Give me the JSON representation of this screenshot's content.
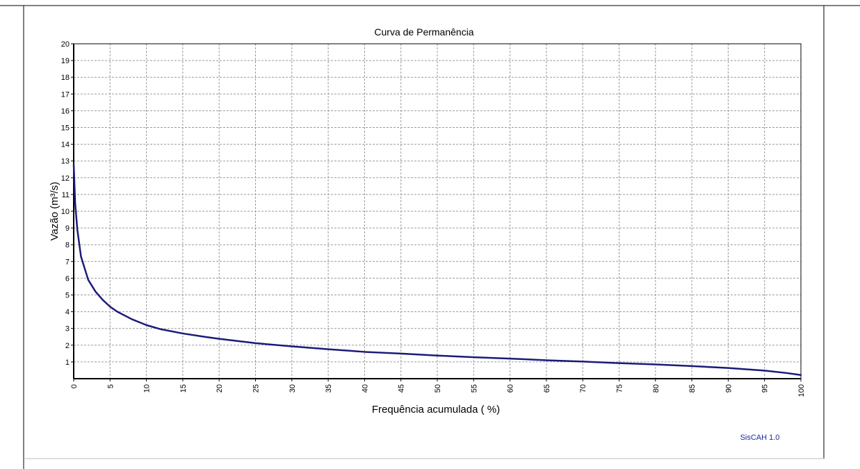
{
  "chart_data": {
    "type": "line",
    "title": "Curva de Permanência",
    "xlabel": "Frequência acumulada ( %)",
    "ylabel": "Vazão (m³/s)",
    "xlim": [
      0,
      100
    ],
    "ylim": [
      0,
      20
    ],
    "x_ticks": [
      "0",
      "5",
      "10",
      "15",
      "20",
      "25",
      "30",
      "35",
      "40",
      "45",
      "50",
      "55",
      "60",
      "65",
      "70",
      "75",
      "80",
      "85",
      "90",
      "95",
      "100"
    ],
    "y_ticks": [
      "1",
      "2",
      "3",
      "4",
      "5",
      "6",
      "7",
      "8",
      "9",
      "10",
      "11",
      "12",
      "13",
      "14",
      "15",
      "16",
      "17",
      "18",
      "19",
      "20"
    ],
    "grid": true,
    "series": [
      {
        "color": "#1a1a7a",
        "x": [
          0,
          0.2,
          0.5,
          1,
          1.5,
          2,
          3,
          4,
          5,
          6,
          8,
          10,
          12,
          15,
          18,
          20,
          25,
          30,
          35,
          40,
          45,
          50,
          55,
          60,
          65,
          70,
          75,
          80,
          85,
          90,
          95,
          98,
          100
        ],
        "y": [
          12.8,
          10.5,
          8.9,
          7.3,
          6.6,
          5.9,
          5.2,
          4.7,
          4.3,
          4.0,
          3.55,
          3.2,
          2.95,
          2.7,
          2.5,
          2.38,
          2.12,
          1.93,
          1.76,
          1.6,
          1.5,
          1.38,
          1.28,
          1.2,
          1.1,
          1.02,
          0.93,
          0.85,
          0.75,
          0.64,
          0.48,
          0.34,
          0.22
        ]
      }
    ]
  },
  "watermark": "SisCAH 1.0"
}
